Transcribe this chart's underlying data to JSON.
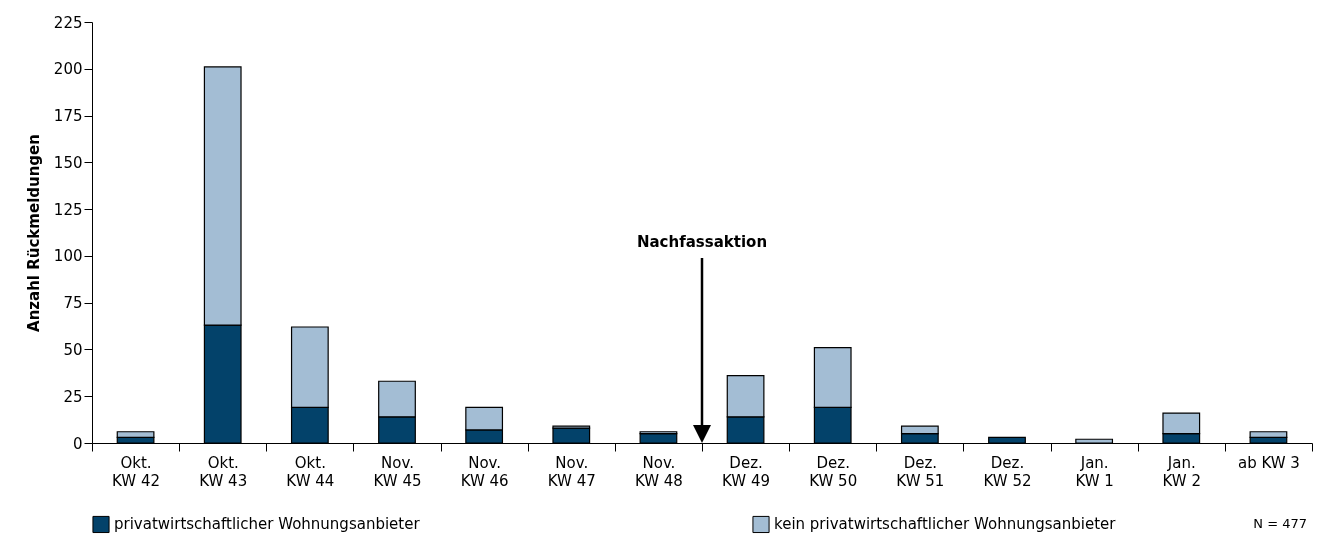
{
  "chart_data": {
    "type": "bar",
    "stacked": true,
    "ylabel": "Anzahl Rückmeldungen",
    "categories": [
      "Okt.\nKW 42",
      "Okt.\nKW 43",
      "Okt.\nKW  44",
      "Nov.\nKW  45",
      "Nov.\nKW 46",
      "Nov.\nKW 47",
      "Nov.\nKW  48",
      "Dez.\nKW 49",
      "Dez.\nKW 50",
      "Dez.\nKW 51",
      "Dez.\nKW 52",
      "Jan.\nKW  1",
      "Jan.\nKW  2",
      "ab KW 3"
    ],
    "series": [
      {
        "name": "privatwirtschaftlicher Wohnungsanbieter",
        "color": "#03426a",
        "values": [
          3,
          63,
          19,
          14,
          7,
          8,
          5,
          14,
          19,
          5,
          3,
          0,
          5,
          3
        ]
      },
      {
        "name": "kein privatwirtschaftlicher Wohnungsanbieter",
        "color": "#a3bdd4",
        "values": [
          3,
          138,
          43,
          19,
          12,
          1,
          1,
          22,
          32,
          4,
          0,
          2,
          11,
          3
        ]
      }
    ],
    "ylim": [
      0,
      225
    ],
    "yticks": [
      0,
      25,
      50,
      75,
      100,
      125,
      150,
      175,
      200,
      225
    ],
    "grid": false,
    "legend": "bottom",
    "annotations": [
      "Nachfassaktion",
      "N = 477"
    ]
  }
}
